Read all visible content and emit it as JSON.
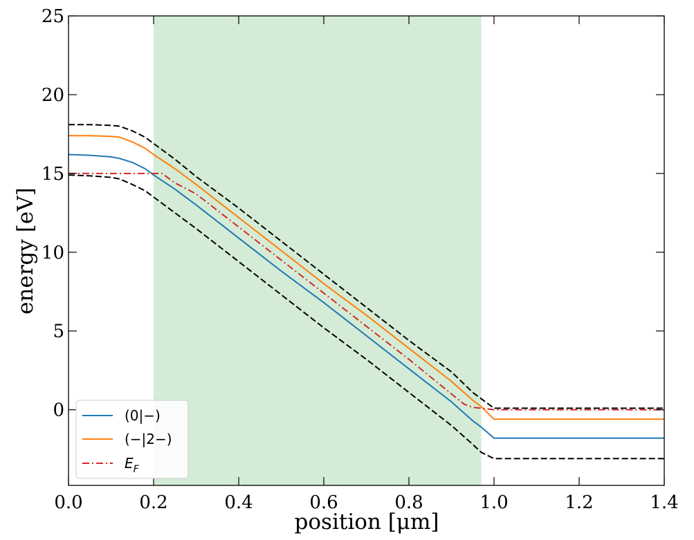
{
  "chart_data": {
    "type": "line",
    "xlabel": "position [μm]",
    "ylabel": "energy [eV]",
    "xlim": [
      0.0,
      1.4
    ],
    "ylim": [
      -4.8,
      25
    ],
    "xticks": [
      0.0,
      0.2,
      0.4,
      0.6,
      0.8,
      1.0,
      1.2,
      1.4
    ],
    "xtick_labels": [
      "0.0",
      "0.2",
      "0.4",
      "0.6",
      "0.8",
      "1.0",
      "1.2",
      "1.4"
    ],
    "yticks": [
      0,
      5,
      10,
      15,
      20,
      25
    ],
    "ytick_labels": [
      "0",
      "5",
      "10",
      "15",
      "20",
      "25"
    ],
    "grid": false,
    "legend_position": "bottom-left",
    "shaded_region": {
      "x_start": 0.2,
      "x_end": 0.97,
      "color": "#d4ecd6"
    },
    "series": [
      {
        "name": "(0|−)",
        "color": "#1f77b4",
        "style": "solid",
        "x": [
          0.0,
          0.05,
          0.1,
          0.12,
          0.15,
          0.18,
          0.2,
          0.25,
          0.3,
          0.4,
          0.5,
          0.6,
          0.7,
          0.8,
          0.9,
          0.95,
          0.97,
          1.0,
          1.2,
          1.4
        ],
        "y": [
          16.2,
          16.15,
          16.05,
          15.95,
          15.7,
          15.3,
          14.9,
          14.0,
          13.0,
          10.9,
          8.8,
          6.8,
          4.7,
          2.6,
          0.5,
          -0.7,
          -1.1,
          -1.8,
          -1.8,
          -1.8
        ]
      },
      {
        "name": "(−|2−)",
        "color": "#ff7f0e",
        "style": "solid",
        "x": [
          0.0,
          0.05,
          0.1,
          0.12,
          0.15,
          0.18,
          0.2,
          0.25,
          0.3,
          0.4,
          0.5,
          0.6,
          0.7,
          0.8,
          0.9,
          0.95,
          0.97,
          1.0,
          1.2,
          1.4
        ],
        "y": [
          17.4,
          17.4,
          17.35,
          17.3,
          17.0,
          16.6,
          16.2,
          15.3,
          14.3,
          12.2,
          10.1,
          8.0,
          6.0,
          3.9,
          1.8,
          0.6,
          0.2,
          -0.6,
          -0.6,
          -0.6
        ]
      },
      {
        "name": "E_F",
        "color": "#d62728",
        "style": "dashdot",
        "x": [
          0.0,
          0.1,
          0.2,
          0.22,
          0.25,
          0.3,
          0.4,
          0.5,
          0.6,
          0.7,
          0.8,
          0.9,
          0.93,
          0.95,
          0.97,
          1.0,
          1.2,
          1.4
        ],
        "y": [
          15.0,
          15.0,
          15.0,
          15.0,
          14.4,
          13.7,
          11.6,
          9.5,
          7.4,
          5.3,
          3.2,
          1.0,
          0.35,
          0.15,
          0.1,
          0.0,
          0.0,
          0.0
        ]
      },
      {
        "color": "#000000",
        "style": "dashed",
        "x": [
          0.0,
          0.05,
          0.1,
          0.12,
          0.15,
          0.18,
          0.2,
          0.25,
          0.3,
          0.4,
          0.5,
          0.6,
          0.7,
          0.8,
          0.9,
          0.95,
          0.97,
          1.0,
          1.2,
          1.4
        ],
        "y": [
          18.1,
          18.1,
          18.05,
          18.0,
          17.7,
          17.3,
          16.9,
          15.9,
          14.8,
          12.8,
          10.7,
          8.6,
          6.5,
          4.4,
          2.4,
          1.1,
          0.7,
          0.1,
          0.1,
          0.1
        ]
      },
      {
        "color": "#000000",
        "style": "dashed",
        "x": [
          0.0,
          0.05,
          0.1,
          0.12,
          0.15,
          0.18,
          0.2,
          0.25,
          0.3,
          0.4,
          0.5,
          0.6,
          0.7,
          0.8,
          0.9,
          0.95,
          0.97,
          1.0,
          1.2,
          1.4
        ],
        "y": [
          14.9,
          14.85,
          14.75,
          14.65,
          14.3,
          13.9,
          13.5,
          12.5,
          11.5,
          9.4,
          7.3,
          5.2,
          3.2,
          1.1,
          -1.0,
          -2.2,
          -2.7,
          -3.1,
          -3.1,
          -3.1
        ]
      }
    ],
    "legend_entries": [
      {
        "label_main": "(0|−)",
        "label_sub": "",
        "color": "#1f77b4",
        "style": "solid"
      },
      {
        "label_main": "(−|2−)",
        "label_sub": "",
        "color": "#ff7f0e",
        "style": "solid"
      },
      {
        "label_main": "E",
        "label_sub": "F",
        "color": "#d62728",
        "style": "dashdot"
      }
    ]
  }
}
